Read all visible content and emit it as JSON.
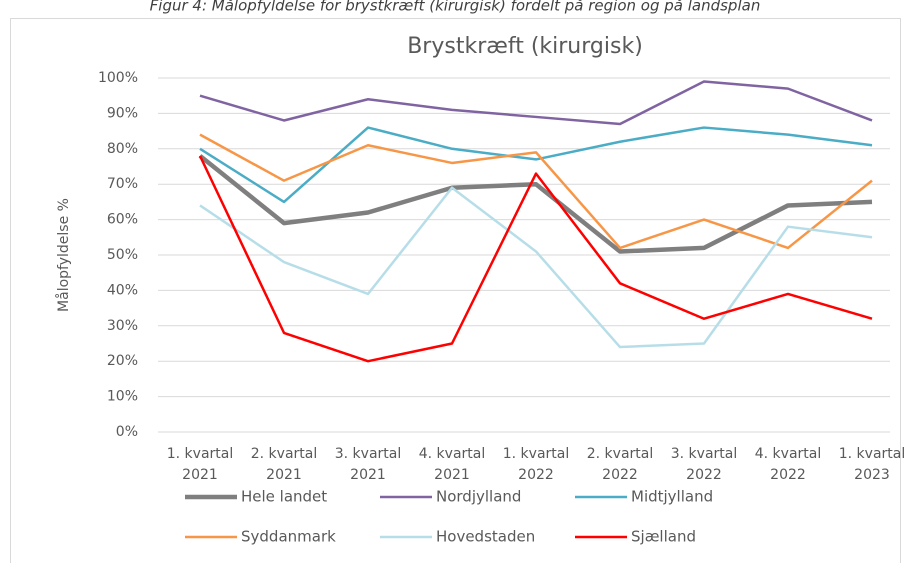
{
  "caption": "Figur 4: Målopfyldelse for brystkræft (kirurgisk) fordelt på region og på landsplan",
  "chart_data": {
    "type": "line",
    "title": "Brystkræft (kirurgisk)",
    "y_label": "Målopfyldelse %",
    "categories": [
      "1. kvartal 2021",
      "2. kvartal 2021",
      "3. kvartal 2021",
      "4. kvartal 2021",
      "1. kvartal 2022",
      "2. kvartal 2022",
      "3. kvartal 2022",
      "4. kvartal 2022",
      "1. kvartal 2023"
    ],
    "series": [
      {
        "name": "Hele landet",
        "color": "#7f7f7f",
        "values": [
          78,
          59,
          62,
          69,
          70,
          51,
          52,
          64,
          65
        ]
      },
      {
        "name": "Nordjylland",
        "color": "#8064a2",
        "values": [
          95,
          88,
          94,
          91,
          89,
          87,
          99,
          97,
          88
        ]
      },
      {
        "name": "Midtjylland",
        "color": "#4bacc6",
        "values": [
          80,
          65,
          86,
          80,
          77,
          82,
          86,
          84,
          81
        ]
      },
      {
        "name": "Syddanmark",
        "color": "#f79646",
        "values": [
          84,
          71,
          81,
          76,
          79,
          52,
          60,
          52,
          71
        ]
      },
      {
        "name": "Hovedstaden",
        "color": "#b7dee8",
        "values": [
          64,
          48,
          39,
          69,
          51,
          24,
          25,
          58,
          55
        ]
      },
      {
        "name": "Sjælland",
        "color": "#ff0000",
        "values": [
          78,
          28,
          20,
          25,
          73,
          42,
          32,
          39,
          32
        ]
      }
    ],
    "ylim": [
      0,
      100
    ],
    "yticks": [
      {
        "value": 0,
        "label": "0%"
      },
      {
        "value": 10,
        "label": "10%"
      },
      {
        "value": 20,
        "label": "20%"
      },
      {
        "value": 30,
        "label": "30%"
      },
      {
        "value": 40,
        "label": "40%"
      },
      {
        "value": 50,
        "label": "50%"
      },
      {
        "value": 60,
        "label": "60%"
      },
      {
        "value": 70,
        "label": "70%"
      },
      {
        "value": 80,
        "label": "80%"
      },
      {
        "value": 90,
        "label": "90%"
      },
      {
        "value": 100,
        "label": "100%"
      }
    ],
    "grid": true,
    "legend": "bottom"
  }
}
